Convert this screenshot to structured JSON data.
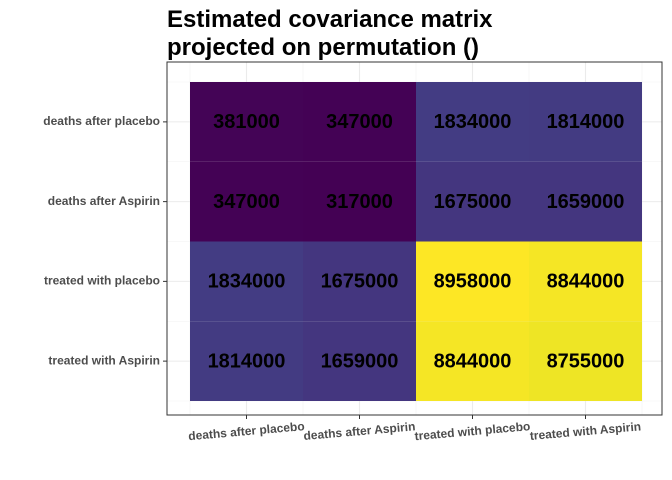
{
  "chart_data": {
    "type": "heatmap",
    "title": [
      "Estimated covariance matrix",
      "projected on permutation ()"
    ],
    "x_categories": [
      "deaths after placebo",
      "deaths after Aspirin",
      "treated with placebo",
      "treated with Aspirin"
    ],
    "y_categories": [
      "deaths after placebo",
      "deaths after Aspirin",
      "treated with placebo",
      "treated with Aspirin"
    ],
    "values": [
      [
        381000,
        347000,
        1834000,
        1814000
      ],
      [
        347000,
        317000,
        1675000,
        1659000
      ],
      [
        1834000,
        1675000,
        8958000,
        8844000
      ],
      [
        1814000,
        1659000,
        8844000,
        8755000
      ]
    ],
    "colormap": "viridis",
    "grid": true
  }
}
